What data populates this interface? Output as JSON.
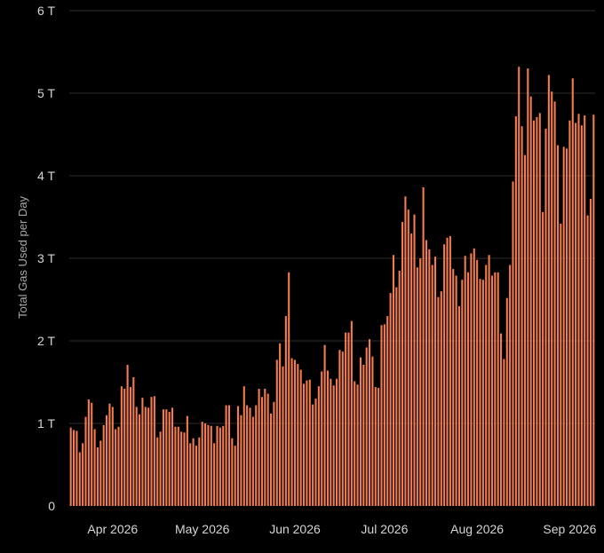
{
  "chart_data": {
    "type": "bar",
    "title": "",
    "xlabel": "",
    "ylabel": "Total Gas Used per Day",
    "y_unit_suffix": " T",
    "ylim": [
      0,
      6
    ],
    "y_ticks": [
      0,
      1,
      2,
      3,
      4,
      5,
      6
    ],
    "y_tick_labels": [
      "0",
      "1 T",
      "2 T",
      "3 T",
      "4 T",
      "5 T",
      "6 T"
    ],
    "grid": true,
    "bar_color": "#F47C4F",
    "x_start_date": "2026-03-18",
    "x_tick_labels": [
      {
        "label": "Apr 2026",
        "date": "2026-04-01"
      },
      {
        "label": "May 2026",
        "date": "2026-05-01"
      },
      {
        "label": "Jun 2026",
        "date": "2026-06-01"
      },
      {
        "label": "Jul 2026",
        "date": "2026-07-01"
      },
      {
        "label": "Aug 2026",
        "date": "2026-08-01"
      },
      {
        "label": "Sep 2026",
        "date": "2026-09-01"
      }
    ],
    "values": [
      0.95,
      0.92,
      0.91,
      0.65,
      0.76,
      1.08,
      1.29,
      1.25,
      0.93,
      0.71,
      0.79,
      0.98,
      1.1,
      1.24,
      1.2,
      0.93,
      0.96,
      1.45,
      1.42,
      1.71,
      1.44,
      1.56,
      1.2,
      1.11,
      1.31,
      1.2,
      1.19,
      1.32,
      1.33,
      0.83,
      0.9,
      1.17,
      1.17,
      1.14,
      1.19,
      0.96,
      0.96,
      0.9,
      0.89,
      1.09,
      0.76,
      0.82,
      0.73,
      0.83,
      1.02,
      1.0,
      0.98,
      0.97,
      0.76,
      0.97,
      0.95,
      0.97,
      1.22,
      1.22,
      0.82,
      0.73,
      1.21,
      1.1,
      1.45,
      1.22,
      1.19,
      1.08,
      1.22,
      1.42,
      1.32,
      1.42,
      1.36,
      1.12,
      1.26,
      1.77,
      1.97,
      1.69,
      2.3,
      2.83,
      1.79,
      1.77,
      1.72,
      1.65,
      1.48,
      1.52,
      1.53,
      1.23,
      1.3,
      1.45,
      1.63,
      1.95,
      1.64,
      1.54,
      1.46,
      1.54,
      1.89,
      1.87,
      2.1,
      2.1,
      2.24,
      1.51,
      1.47,
      1.8,
      1.71,
      1.92,
      2.02,
      1.81,
      1.44,
      1.43,
      2.19,
      2.2,
      2.3,
      2.58,
      3.04,
      2.65,
      2.85,
      3.44,
      3.75,
      3.59,
      3.3,
      3.53,
      2.89,
      3.0,
      3.86,
      3.22,
      3.11,
      2.92,
      3.02,
      2.53,
      2.6,
      3.17,
      3.25,
      3.27,
      2.87,
      2.79,
      2.42,
      2.74,
      3.03,
      2.83,
      3.06,
      3.12,
      2.98,
      2.75,
      2.74,
      2.92,
      3.04,
      2.79,
      2.83,
      2.83,
      2.09,
      1.78,
      2.52,
      2.92,
      3.93,
      4.72,
      5.32,
      4.6,
      4.25,
      5.3,
      4.96,
      4.67,
      4.71,
      4.76,
      3.56,
      4.57,
      5.22,
      5.02,
      4.9,
      4.37,
      3.42,
      4.35,
      4.33,
      4.67,
      5.18,
      4.64,
      4.75,
      4.61,
      4.73,
      3.52,
      3.72,
      4.74
    ]
  }
}
